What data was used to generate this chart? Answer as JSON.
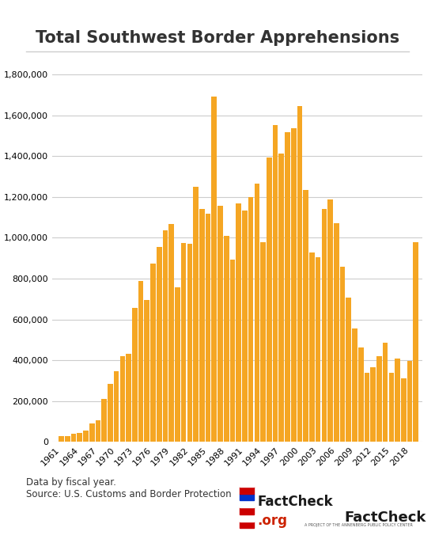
{
  "title": "Total Southwest Border Apprehensions",
  "bar_color": "#F5A623",
  "background_color": "#ffffff",
  "source_text": "Data by fiscal year.\nSource: U.S. Customs and Border Protection",
  "ylim": [
    0,
    1900000
  ],
  "yticks": [
    0,
    200000,
    400000,
    600000,
    800000,
    1000000,
    1200000,
    1400000,
    1600000,
    1800000
  ],
  "years": [
    1961,
    1962,
    1963,
    1964,
    1965,
    1966,
    1967,
    1968,
    1969,
    1970,
    1971,
    1972,
    1973,
    1974,
    1975,
    1976,
    1977,
    1978,
    1979,
    1980,
    1981,
    1982,
    1983,
    1984,
    1985,
    1986,
    1987,
    1988,
    1989,
    1990,
    1991,
    1992,
    1993,
    1994,
    1995,
    1996,
    1997,
    1998,
    1999,
    2000,
    2001,
    2002,
    2003,
    2004,
    2005,
    2006,
    2007,
    2008,
    2009,
    2010,
    2011,
    2012,
    2013,
    2014,
    2015,
    2016,
    2017,
    2018,
    2019
  ],
  "values": [
    27000,
    30000,
    39000,
    43000,
    55000,
    90000,
    108000,
    212000,
    284000,
    345000,
    420000,
    430000,
    655000,
    788000,
    696000,
    875000,
    954000,
    1038000,
    1069000,
    759000,
    975000,
    970000,
    1251000,
    1139000,
    1116000,
    1692000,
    1158000,
    1008000,
    891000,
    1169000,
    1132000,
    1199000,
    1263000,
    979000,
    1394000,
    1550000,
    1412000,
    1516000,
    1537000,
    1643000,
    1235000,
    929000,
    905000,
    1139000,
    1189000,
    1071000,
    858000,
    705000,
    556000,
    463000,
    340000,
    365000,
    420000,
    487000,
    337000,
    409000,
    310000,
    397000,
    977000
  ]
}
